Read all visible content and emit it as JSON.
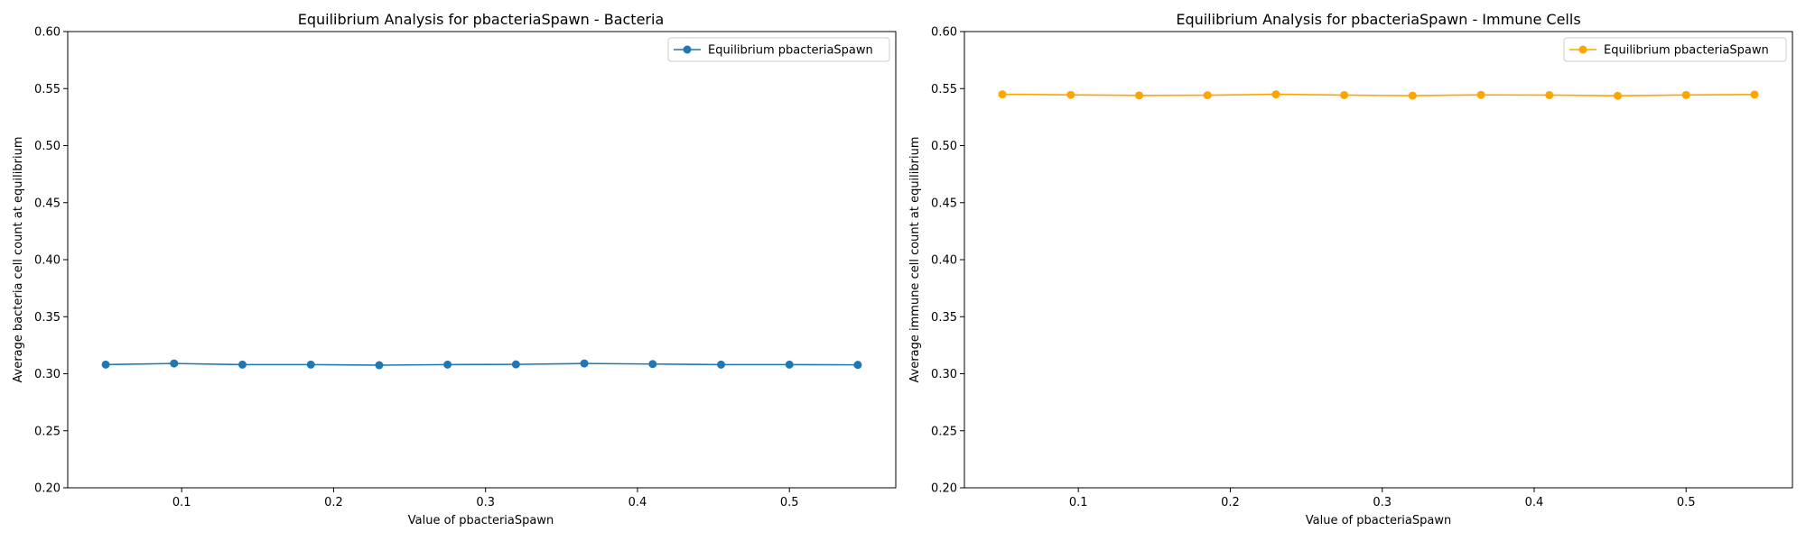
{
  "figure": {
    "background": "#ffffff"
  },
  "chart_data": [
    {
      "type": "line",
      "title": "Equilibrium Analysis for pbacteriaSpawn - Bacteria",
      "xlabel": "Value of pbacteriaSpawn",
      "ylabel": "Average bacteria cell count at equilibrium",
      "xlim": [
        0.025,
        0.57
      ],
      "ylim": [
        0.2,
        0.6
      ],
      "x_ticks": [
        0.1,
        0.2,
        0.3,
        0.4,
        0.5
      ],
      "x_tick_labels": [
        "0.1",
        "0.2",
        "0.3",
        "0.4",
        "0.5"
      ],
      "y_ticks": [
        0.2,
        0.25,
        0.3,
        0.35,
        0.4,
        0.45,
        0.5,
        0.55,
        0.6
      ],
      "y_tick_labels": [
        "0.20",
        "0.25",
        "0.30",
        "0.35",
        "0.40",
        "0.45",
        "0.50",
        "0.55",
        "0.60"
      ],
      "grid": false,
      "legend_position": "top-right",
      "series": [
        {
          "name": "Equilibrium pbacteriaSpawn",
          "color": "#1f77b4",
          "marker": "circle",
          "x": [
            0.05,
            0.095,
            0.14,
            0.185,
            0.23,
            0.275,
            0.32,
            0.365,
            0.41,
            0.455,
            0.5,
            0.545
          ],
          "y": [
            0.308,
            0.309,
            0.308,
            0.308,
            0.3075,
            0.308,
            0.3082,
            0.309,
            0.3085,
            0.308,
            0.308,
            0.3078
          ]
        }
      ]
    },
    {
      "type": "line",
      "title": "Equilibrium Analysis for pbacteriaSpawn - Immune Cells",
      "xlabel": "Value of pbacteriaSpawn",
      "ylabel": "Average immune cell count at equilibrium",
      "xlim": [
        0.025,
        0.57
      ],
      "ylim": [
        0.2,
        0.6
      ],
      "x_ticks": [
        0.1,
        0.2,
        0.3,
        0.4,
        0.5
      ],
      "x_tick_labels": [
        "0.1",
        "0.2",
        "0.3",
        "0.4",
        "0.5"
      ],
      "y_ticks": [
        0.2,
        0.25,
        0.3,
        0.35,
        0.4,
        0.45,
        0.5,
        0.55,
        0.6
      ],
      "y_tick_labels": [
        "0.20",
        "0.25",
        "0.30",
        "0.35",
        "0.40",
        "0.45",
        "0.50",
        "0.55",
        "0.60"
      ],
      "grid": false,
      "legend_position": "top-right",
      "series": [
        {
          "name": "Equilibrium pbacteriaSpawn",
          "color": "#ffa500",
          "marker": "circle",
          "x": [
            0.05,
            0.095,
            0.14,
            0.185,
            0.23,
            0.275,
            0.32,
            0.365,
            0.41,
            0.455,
            0.5,
            0.545
          ],
          "y": [
            0.545,
            0.5445,
            0.544,
            0.5442,
            0.545,
            0.5443,
            0.5438,
            0.5445,
            0.5443,
            0.5437,
            0.5444,
            0.5448
          ]
        }
      ]
    }
  ]
}
